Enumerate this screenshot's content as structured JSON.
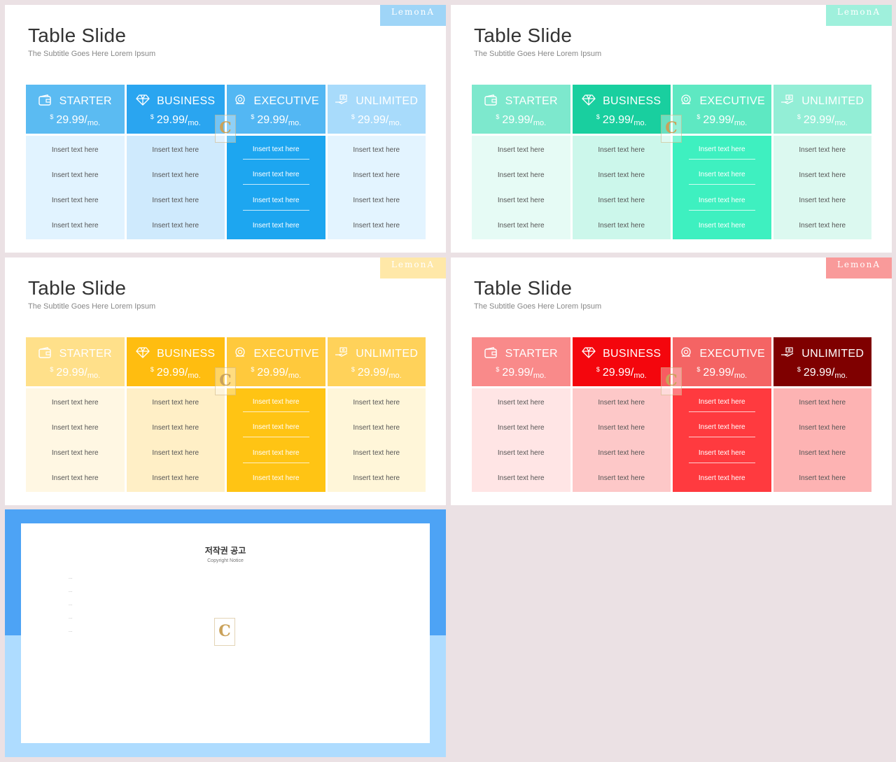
{
  "slides": [
    {
      "brand": "LemonA",
      "title": "Table Slide",
      "subtitle": "The Subtitle Goes Here Lorem Ipsum",
      "colors": {
        "brand": "#9fd5f7",
        "head": [
          "#5bbbf2",
          "#2aa5f0",
          "#53b7f3",
          "#a8dbfb"
        ],
        "body": [
          "#e1f3ff",
          "#cfeafd",
          "#1da6f0",
          "#e3f4ff"
        ]
      }
    },
    {
      "brand": "LemonA",
      "title": "Table Slide",
      "subtitle": "The Subtitle Goes Here Lorem Ipsum",
      "colors": {
        "brand": "#9ff0dc",
        "head": [
          "#7de8cd",
          "#19cf9f",
          "#5ee8c2",
          "#93eed6"
        ],
        "body": [
          "#e6fbf5",
          "#ccf7eb",
          "#3ef0c0",
          "#dcf9f0"
        ]
      }
    },
    {
      "brand": "LemonA",
      "title": "Table Slide",
      "subtitle": "The Subtitle Goes Here Lorem Ipsum",
      "colors": {
        "brand": "#ffe8a8",
        "head": [
          "#ffe08a",
          "#ffbd10",
          "#ffc93c",
          "#ffd25a"
        ],
        "body": [
          "#fff7e3",
          "#ffefc6",
          "#ffc414",
          "#fff6d9"
        ]
      }
    },
    {
      "brand": "LemonA",
      "title": "Table Slide",
      "subtitle": "The Subtitle Goes Here Lorem Ipsum",
      "colors": {
        "brand": "#f99a9a",
        "head": [
          "#f98a8a",
          "#f4060d",
          "#f46464",
          "#7f0000"
        ],
        "body": [
          "#ffe5e5",
          "#fdc8c8",
          "#ff3a3f",
          "#fdb3b3"
        ]
      }
    }
  ],
  "plans": [
    {
      "name": "STARTER",
      "icon": "wallet-icon",
      "currency": "$",
      "price": "29.99/",
      "period": "mo."
    },
    {
      "name": "BUSINESS",
      "icon": "diamond-icon",
      "currency": "$",
      "price": "29.99/",
      "period": "mo."
    },
    {
      "name": "EXECUTIVE",
      "icon": "badge-icon",
      "currency": "$",
      "price": "29.99/",
      "period": "mo."
    },
    {
      "name": "UNLIMITED",
      "icon": "hand-money-icon",
      "currency": "$",
      "price": "29.99/",
      "period": "mo."
    }
  ],
  "row_text": "Insert text here",
  "watermark": "C",
  "copyright": {
    "title": "저작권 공고",
    "subtitle": "Copyright Notice",
    "paragraphs": [
      "...",
      "...",
      "...",
      "...",
      "..."
    ],
    "band_colors": {
      "top": "#4da3f5",
      "bottom": "#aedcff"
    }
  }
}
